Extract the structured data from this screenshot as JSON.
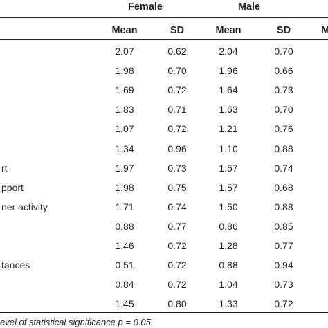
{
  "header": {
    "groups": [
      "Female",
      "Male",
      ""
    ],
    "columns": [
      "Mean",
      "SD",
      "Mean",
      "SD",
      "M"
    ]
  },
  "rows": [
    {
      "label": "",
      "values": [
        "2.07",
        "0.62",
        "2.04",
        "0.70"
      ]
    },
    {
      "label": "",
      "values": [
        "1.98",
        "0.70",
        "1.96",
        "0.66"
      ]
    },
    {
      "label": "",
      "values": [
        "1.69",
        "0.72",
        "1.64",
        "0.73"
      ]
    },
    {
      "label": "",
      "values": [
        "1.83",
        "0.71",
        "1.63",
        "0.70"
      ]
    },
    {
      "label": "",
      "values": [
        "1.07",
        "0.72",
        "1.21",
        "0.76"
      ]
    },
    {
      "label": "",
      "values": [
        "1.34",
        "0.96",
        "1.10",
        "0.88"
      ]
    },
    {
      "label": "rt",
      "values": [
        "1.97",
        "0.73",
        "1.57",
        "0.74"
      ]
    },
    {
      "label": "pport",
      "values": [
        "1.98",
        "0.75",
        "1.57",
        "0.68"
      ]
    },
    {
      "label": "ner activity",
      "values": [
        "1.71",
        "0.74",
        "1.50",
        "0.88"
      ]
    },
    {
      "label": "",
      "values": [
        "0.88",
        "0.77",
        "0.86",
        "0.85"
      ]
    },
    {
      "label": "",
      "values": [
        "1.46",
        "0.72",
        "1.28",
        "0.77"
      ]
    },
    {
      "label": "tances",
      "values": [
        "0.51",
        "0.72",
        "0.88",
        "0.94"
      ]
    },
    {
      "label": "",
      "values": [
        "0.84",
        "0.72",
        "1.04",
        "0.73"
      ]
    },
    {
      "label": "",
      "values": [
        "1.45",
        "0.80",
        "1.33",
        "0.72"
      ]
    }
  ],
  "footnote": "evel of statistical significance p = 0.05."
}
